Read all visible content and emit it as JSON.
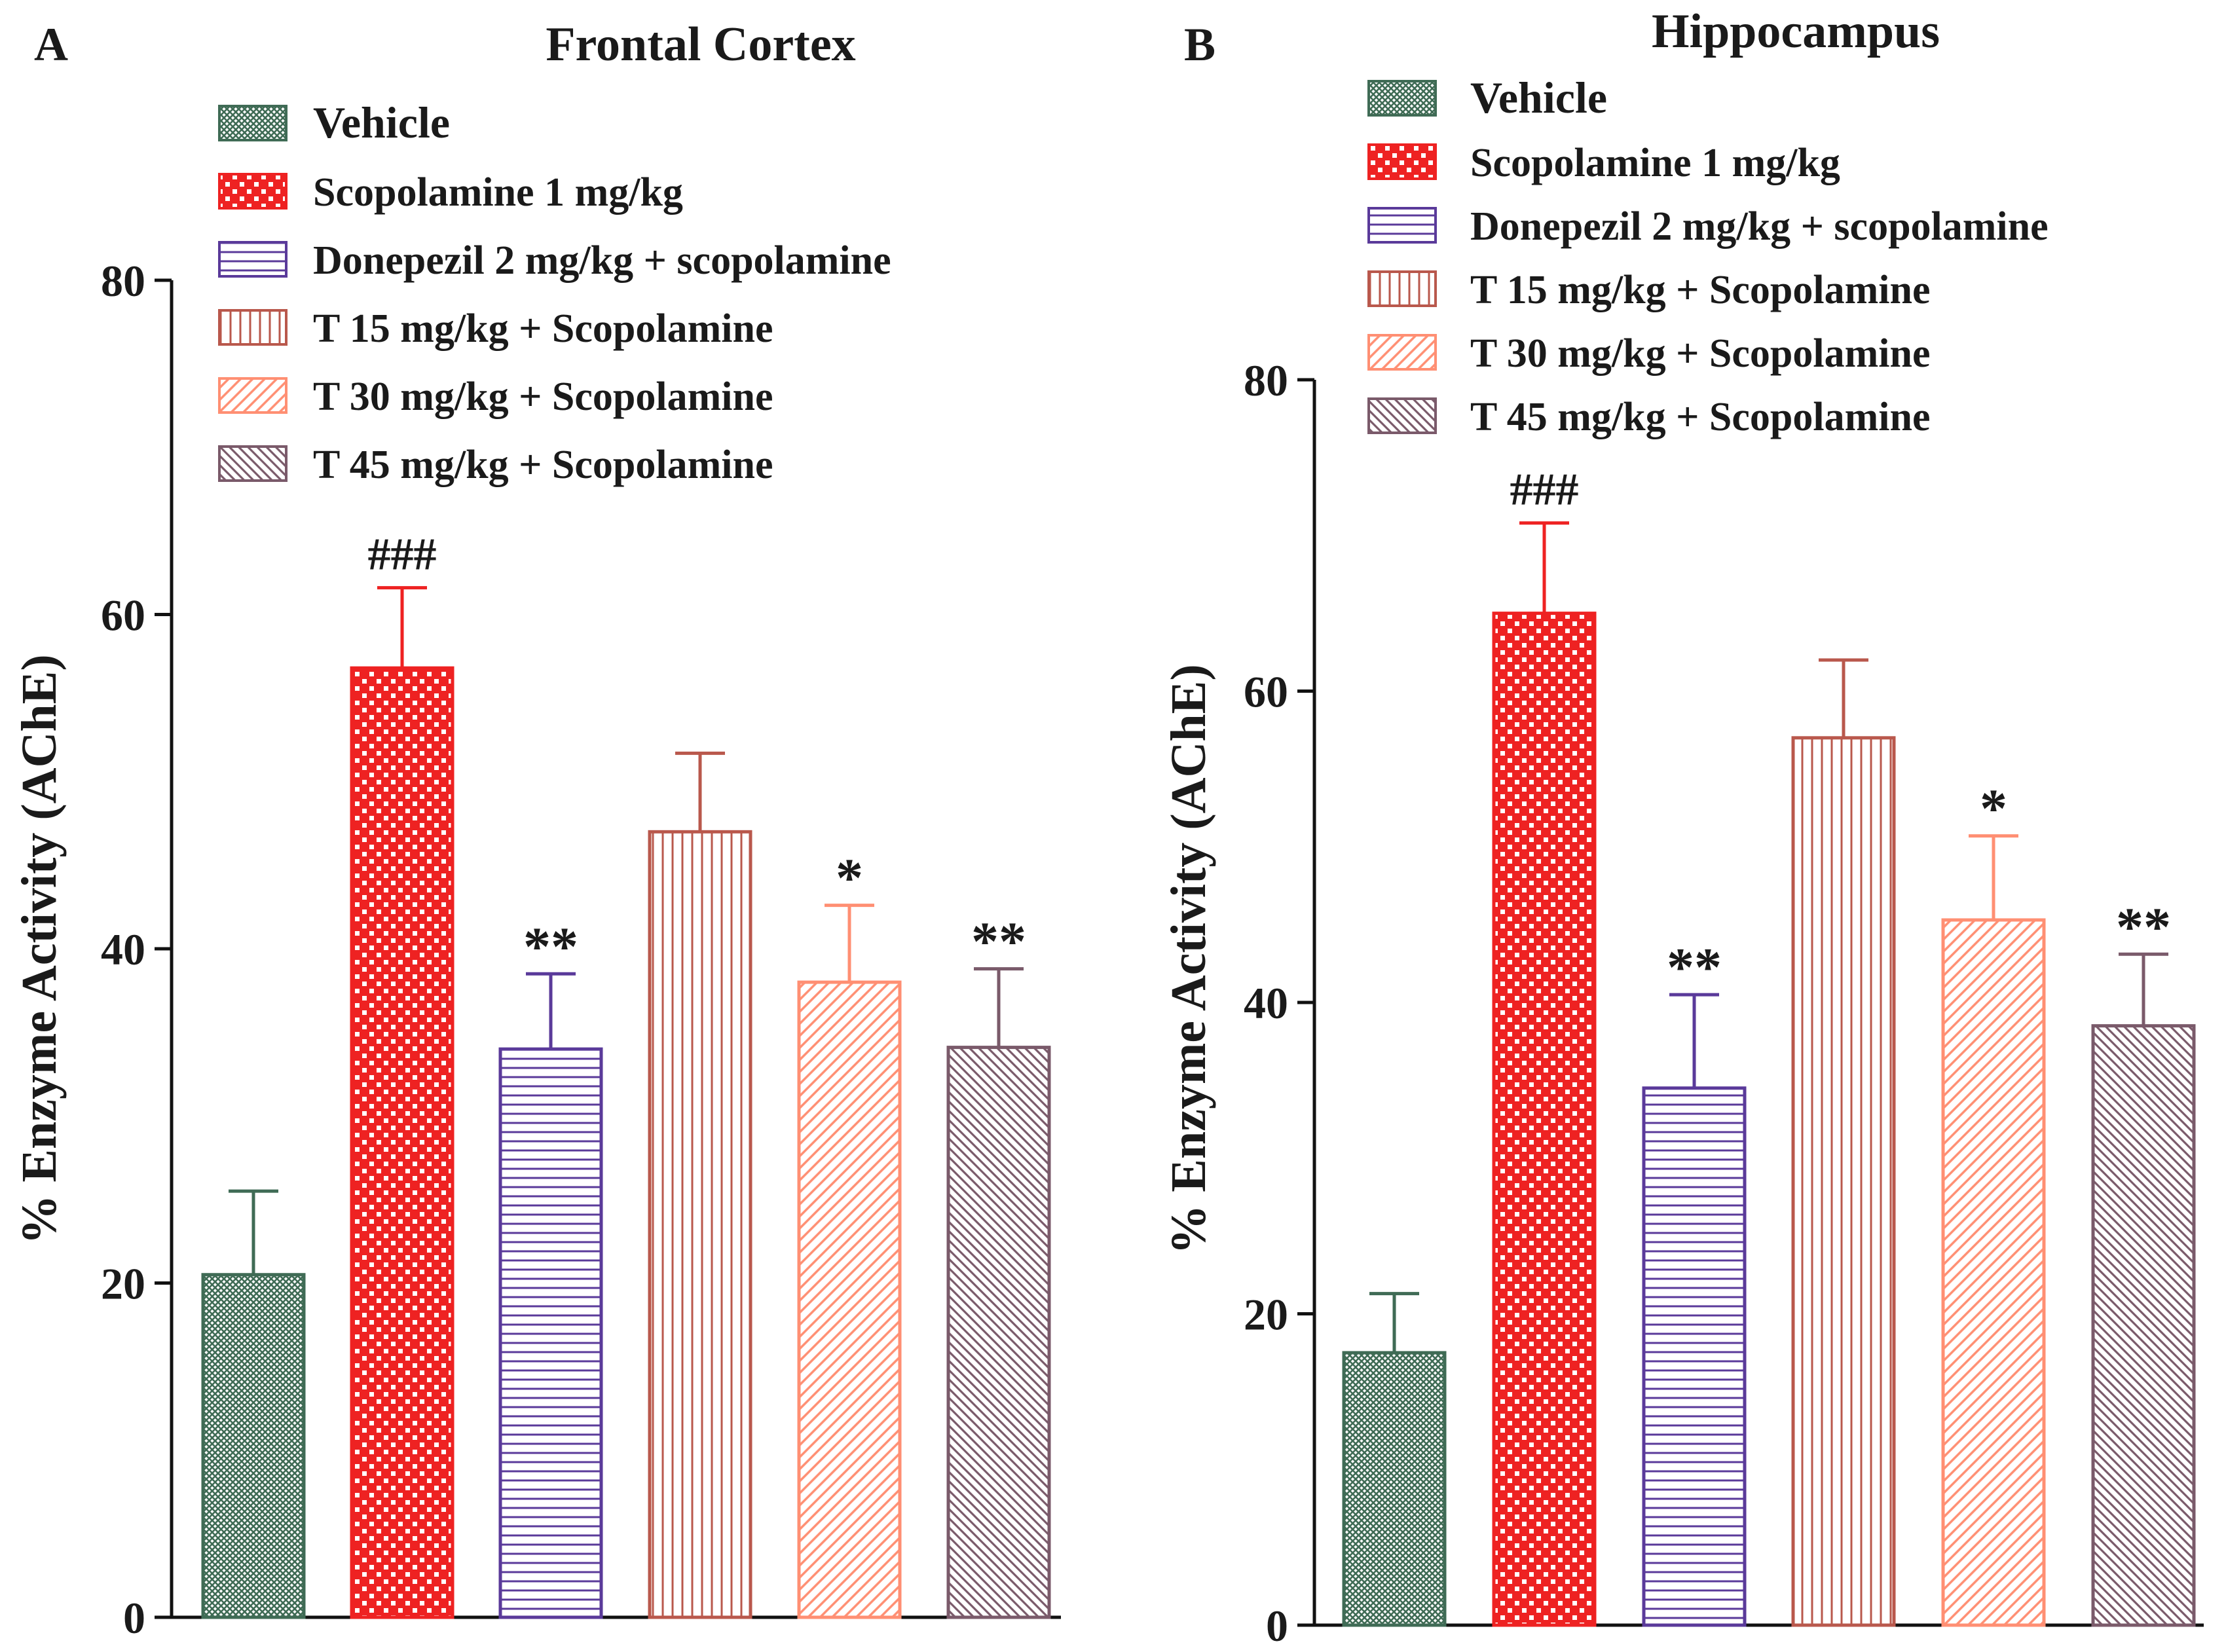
{
  "chart_data": [
    {
      "panel": "A",
      "type": "bar",
      "title": "Frontal Cortex",
      "xlabel": "",
      "ylabel": "% Enzyme Activity (AChE)",
      "ylim": [
        0,
        80
      ],
      "yticks": [
        0,
        20,
        40,
        60,
        80
      ],
      "categories": [
        "Vehicle",
        "Scopolamine 1 mg/kg",
        "Donepezil 2 mg/kg + scopolamine",
        "T 15 mg/kg + Scopolamine",
        "T 30 mg/kg + Scopolamine",
        "T 45 mg/kg + Scopolamine"
      ],
      "values": [
        20.5,
        56.8,
        34.0,
        47.0,
        38.0,
        34.1
      ],
      "errors": [
        5.0,
        4.8,
        4.5,
        4.7,
        4.6,
        4.7
      ],
      "annotations": [
        "",
        "###",
        "**",
        "",
        "*",
        "**"
      ],
      "legend_position": "top"
    },
    {
      "panel": "B",
      "type": "bar",
      "title": "Hippocampus",
      "xlabel": "",
      "ylabel": "% Enzyme Activity (AChE)",
      "ylim": [
        0,
        80
      ],
      "yticks": [
        0,
        20,
        40,
        60,
        80
      ],
      "categories": [
        "Vehicle",
        "Scopolamine 1 mg/kg",
        "Donepezil 2 mg/kg + scopolamine",
        "T 15 mg/kg + Scopolamine",
        "T 30 mg/kg + Scopolamine",
        "T 45 mg/kg + Scopolamine"
      ],
      "values": [
        17.5,
        65.0,
        34.5,
        57.0,
        45.3,
        38.5
      ],
      "errors": [
        3.8,
        5.8,
        6.0,
        5.0,
        5.4,
        4.6
      ],
      "annotations": [
        "",
        "###",
        "**",
        "",
        "*",
        "**"
      ],
      "legend_position": "top"
    }
  ],
  "series_styles": [
    {
      "name": "Vehicle",
      "color": "#3f6b55",
      "pattern": "crosshatch"
    },
    {
      "name": "Scopolamine 1 mg/kg",
      "color": "#ee2222",
      "pattern": "checker"
    },
    {
      "name": "Donepezil 2 mg/kg + scopolamine",
      "color": "#5a3a9a",
      "pattern": "horizontal"
    },
    {
      "name": "T 15 mg/kg + Scopolamine",
      "color": "#b9584c",
      "pattern": "vertical"
    },
    {
      "name": "T 30 mg/kg + Scopolamine",
      "color": "#ff8f73",
      "pattern": "diagonal"
    },
    {
      "name": "T 45 mg/kg + Scopolamine",
      "color": "#7a5a6a",
      "pattern": "diagonal-dense"
    }
  ]
}
